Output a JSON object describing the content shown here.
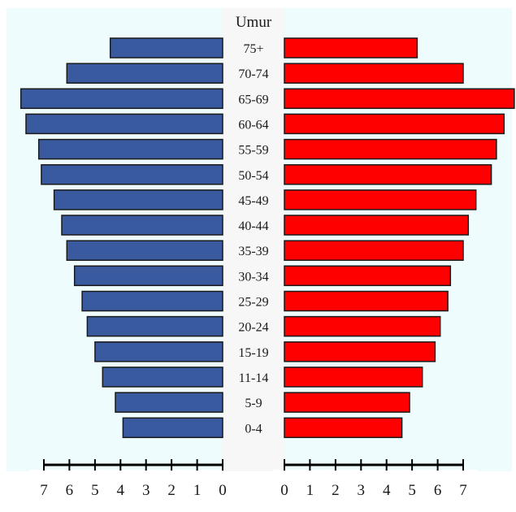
{
  "chart_data": {
    "type": "bar",
    "orientation": "horizontal",
    "chart_style": "population-pyramid",
    "title": "Umur",
    "categories": [
      "0-4",
      "5-9",
      "11-14",
      "15-19",
      "20-24",
      "25-29",
      "30-34",
      "35-39",
      "40-44",
      "45-49",
      "50-54",
      "55-59",
      "60-64",
      "65-69",
      "70-74",
      "75+"
    ],
    "series": [
      {
        "side": "left",
        "color": "#3a5aa0",
        "values": [
          3.9,
          4.2,
          4.7,
          5.0,
          5.3,
          5.5,
          5.8,
          6.1,
          6.3,
          6.6,
          7.1,
          7.2,
          7.7,
          7.9,
          6.1,
          4.4
        ]
      },
      {
        "side": "right",
        "color": "#ff0000",
        "values": [
          4.6,
          4.9,
          5.4,
          5.9,
          6.1,
          6.4,
          6.5,
          7.0,
          7.2,
          7.5,
          8.1,
          8.3,
          8.6,
          9.0,
          7.0,
          5.2
        ]
      }
    ],
    "left_axis": {
      "ticks": [
        "7",
        "6",
        "5",
        "4",
        "3",
        "2",
        "1",
        "0"
      ],
      "direction": "reversed",
      "xlim": [
        0,
        7
      ]
    },
    "right_axis": {
      "ticks": [
        "0",
        "1",
        "2",
        "3",
        "4",
        "5",
        "6",
        "7"
      ],
      "xlim": [
        0,
        7
      ]
    },
    "bars_exceed_axis": true,
    "colors": {
      "plot_background": "#eefcfe",
      "center_column": "#f7f7f7",
      "axis_line": "#000000",
      "bar_border": "#1a1a1a"
    }
  }
}
